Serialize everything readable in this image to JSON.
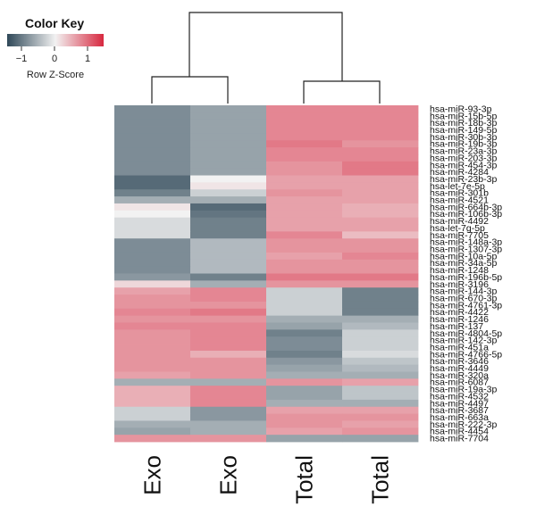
{
  "color_key": {
    "title": "Color Key",
    "ticks": [
      "−1",
      "0",
      "1"
    ],
    "label": "Row Z-Score",
    "colors": {
      "low": "#2f4858",
      "mid": "#f2f2f2",
      "high": "#d7283f"
    }
  },
  "chart_data": {
    "type": "heatmap",
    "title": "",
    "columns": [
      "Exo",
      "Exo",
      "Total",
      "Total"
    ],
    "rows": [
      "hsa-miR-93-3p",
      "hsa-miR-15b-5p",
      "hsa-miR-18b-3p",
      "hsa-miR-149-5p",
      "hsa-miR-30b-3p",
      "hsa-miR-19b-3p",
      "hsa-miR-23a-3p",
      "hsa-miR-203-3p",
      "hsa-miR-454-3p",
      "hsa-miR-4284",
      "hsa-miR-23b-3p",
      "hsa-let-7e-5p",
      "hsa-miR-301b",
      "hsa-miR-4521",
      "hsa-miR-664b-3p",
      "hsa-miR-106b-3p",
      "hsa-miR-4492",
      "hsa-let-7g-5p",
      "hsa-miR-7705",
      "hsa-miR-148a-3p",
      "hsa-miR-1307-3p",
      "hsa-miR-10a-5p",
      "hsa-miR-34a-5p",
      "hsa-miR-1248",
      "hsa-miR-196b-5p",
      "hsa-miR-3196",
      "hsa-miR-144-3p",
      "hsa-miR-670-3p",
      "hsa-miR-4761-3p",
      "hsa-miR-4422",
      "hsa-miR-1246",
      "hsa-miR-137",
      "hsa-miR-4804-5p",
      "hsa-miR-142-3p",
      "hsa-miR-451a",
      "hsa-miR-4766-5p",
      "hsa-miR-3646",
      "hsa-miR-4449",
      "hsa-miR-320a",
      "hsa-miR-6087",
      "hsa-miR-19a-3p",
      "hsa-miR-4532",
      "hsa-miR-4497",
      "hsa-miR-3687",
      "hsa-miR-663a",
      "hsa-miR-222-3p",
      "hsa-miR-4454",
      "hsa-miR-7704"
    ],
    "values": [
      [
        -0.9,
        -0.7,
        0.8,
        0.8
      ],
      [
        -0.9,
        -0.7,
        0.8,
        0.8
      ],
      [
        -0.9,
        -0.7,
        0.8,
        0.8
      ],
      [
        -0.9,
        -0.7,
        0.8,
        0.8
      ],
      [
        -0.9,
        -0.7,
        0.8,
        0.8
      ],
      [
        -0.9,
        -0.7,
        0.9,
        0.7
      ],
      [
        -0.9,
        -0.7,
        0.8,
        0.8
      ],
      [
        -0.9,
        -0.7,
        0.8,
        0.8
      ],
      [
        -0.9,
        -0.7,
        0.7,
        0.9
      ],
      [
        -0.9,
        -0.7,
        0.7,
        0.9
      ],
      [
        -1.2,
        0.0,
        0.6,
        0.6
      ],
      [
        -1.2,
        0.1,
        0.6,
        0.6
      ],
      [
        -1.0,
        -0.3,
        0.7,
        0.6
      ],
      [
        -0.6,
        -0.6,
        0.6,
        0.6
      ],
      [
        0.1,
        -1.2,
        0.6,
        0.5
      ],
      [
        0.0,
        -1.1,
        0.6,
        0.5
      ],
      [
        -0.2,
        -1.0,
        0.6,
        0.6
      ],
      [
        -0.2,
        -1.0,
        0.6,
        0.6
      ],
      [
        -0.2,
        -1.0,
        0.8,
        0.4
      ],
      [
        -0.9,
        -0.5,
        0.7,
        0.7
      ],
      [
        -0.9,
        -0.5,
        0.7,
        0.7
      ],
      [
        -0.9,
        -0.5,
        0.6,
        0.8
      ],
      [
        -0.9,
        -0.5,
        0.7,
        0.7
      ],
      [
        -0.9,
        -0.5,
        0.7,
        0.7
      ],
      [
        -0.8,
        -1.0,
        0.9,
        0.9
      ],
      [
        0.2,
        -0.6,
        0.7,
        0.7
      ],
      [
        0.6,
        0.8,
        -0.3,
        -1.0
      ],
      [
        0.7,
        0.8,
        -0.3,
        -1.0
      ],
      [
        0.7,
        0.7,
        -0.3,
        -1.0
      ],
      [
        0.8,
        0.9,
        -0.3,
        -1.0
      ],
      [
        0.7,
        0.7,
        -0.6,
        -0.6
      ],
      [
        0.8,
        0.8,
        -0.7,
        -0.5
      ],
      [
        0.7,
        0.8,
        -1.0,
        -0.3
      ],
      [
        0.7,
        0.8,
        -0.9,
        -0.3
      ],
      [
        0.7,
        0.8,
        -0.9,
        -0.3
      ],
      [
        0.7,
        0.5,
        -1.0,
        -0.2
      ],
      [
        0.7,
        0.7,
        -0.8,
        -0.4
      ],
      [
        0.7,
        0.7,
        -0.7,
        -0.5
      ],
      [
        0.6,
        0.7,
        -0.6,
        -0.6
      ],
      [
        -0.6,
        -0.6,
        0.7,
        0.6
      ],
      [
        0.5,
        0.8,
        -0.7,
        -0.4
      ],
      [
        0.5,
        0.8,
        -0.7,
        -0.4
      ],
      [
        0.5,
        0.8,
        -0.6,
        -0.6
      ],
      [
        -0.3,
        -0.8,
        0.6,
        0.6
      ],
      [
        -0.3,
        -0.8,
        0.7,
        0.7
      ],
      [
        -0.6,
        -0.6,
        0.7,
        0.6
      ],
      [
        -0.7,
        -0.6,
        0.6,
        0.7
      ],
      [
        0.7,
        0.7,
        -0.7,
        -0.7
      ]
    ],
    "zlim": [
      -1.5,
      1.5
    ],
    "row_dendrogram": false,
    "column_dendrogram": true
  }
}
